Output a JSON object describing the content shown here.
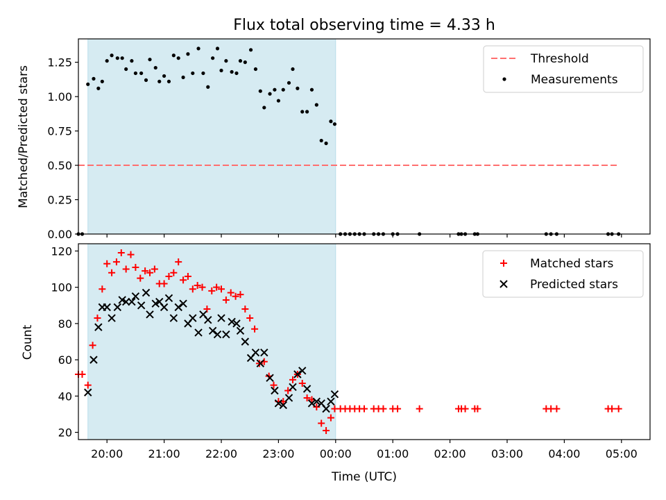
{
  "figure": {
    "title": "Flux total observing time = 4.33 h"
  },
  "chart_data": [
    {
      "type": "scatter",
      "panel": "top",
      "xlabel": "",
      "ylabel": "Matched/Predicted stars",
      "xlim": [
        "19:30",
        "05:30"
      ],
      "ylim": [
        0,
        1.42
      ],
      "yticks": [
        "0.00",
        "0.25",
        "0.50",
        "0.75",
        "1.00",
        "1.25"
      ],
      "highlight_span": {
        "from": "19:40",
        "to": "00:00",
        "color": "#add8e6"
      },
      "legend": {
        "position": "top-right",
        "entries": [
          "Threshold",
          "Measurements"
        ]
      },
      "threshold": {
        "name": "Threshold",
        "value": 0.5,
        "x_from": "19:30",
        "x_to": "04:57",
        "color": "#ff6f6f"
      },
      "series": [
        {
          "name": "Measurements",
          "color": "#000000",
          "points": [
            [
              "19:30",
              0.0
            ],
            [
              "19:34",
              0.0
            ],
            [
              "19:40",
              1.09
            ],
            [
              "19:46",
              1.13
            ],
            [
              "19:51",
              1.06
            ],
            [
              "19:55",
              1.11
            ],
            [
              "20:00",
              1.26
            ],
            [
              "20:05",
              1.3
            ],
            [
              "20:11",
              1.28
            ],
            [
              "20:16",
              1.28
            ],
            [
              "20:20",
              1.2
            ],
            [
              "20:26",
              1.26
            ],
            [
              "20:30",
              1.17
            ],
            [
              "20:36",
              1.17
            ],
            [
              "20:41",
              1.12
            ],
            [
              "20:45",
              1.27
            ],
            [
              "20:51",
              1.21
            ],
            [
              "20:55",
              1.11
            ],
            [
              "21:00",
              1.15
            ],
            [
              "21:05",
              1.11
            ],
            [
              "21:10",
              1.3
            ],
            [
              "21:15",
              1.28
            ],
            [
              "21:20",
              1.14
            ],
            [
              "21:25",
              1.31
            ],
            [
              "21:30",
              1.17
            ],
            [
              "21:36",
              1.35
            ],
            [
              "21:41",
              1.17
            ],
            [
              "21:46",
              1.07
            ],
            [
              "21:51",
              1.28
            ],
            [
              "21:56",
              1.35
            ],
            [
              "22:00",
              1.19
            ],
            [
              "22:05",
              1.26
            ],
            [
              "22:11",
              1.18
            ],
            [
              "22:16",
              1.17
            ],
            [
              "22:20",
              1.26
            ],
            [
              "22:25",
              1.25
            ],
            [
              "22:31",
              1.34
            ],
            [
              "22:36",
              1.2
            ],
            [
              "22:41",
              1.04
            ],
            [
              "22:45",
              0.92
            ],
            [
              "22:51",
              1.02
            ],
            [
              "22:56",
              1.05
            ],
            [
              "23:00",
              0.97
            ],
            [
              "23:05",
              1.05
            ],
            [
              "23:11",
              1.1
            ],
            [
              "23:15",
              1.2
            ],
            [
              "23:20",
              1.06
            ],
            [
              "23:25",
              0.89
            ],
            [
              "23:30",
              0.89
            ],
            [
              "23:35",
              1.05
            ],
            [
              "23:40",
              0.94
            ],
            [
              "23:45",
              0.68
            ],
            [
              "23:50",
              0.66
            ],
            [
              "23:55",
              0.82
            ],
            [
              "23:59",
              0.8
            ],
            [
              "00:05",
              0.0
            ],
            [
              "00:10",
              0.0
            ],
            [
              "00:15",
              0.0
            ],
            [
              "00:20",
              0.0
            ],
            [
              "00:25",
              0.0
            ],
            [
              "00:30",
              0.0
            ],
            [
              "00:40",
              0.0
            ],
            [
              "00:45",
              0.0
            ],
            [
              "00:50",
              0.0
            ],
            [
              "01:00",
              0.0
            ],
            [
              "01:05",
              0.0
            ],
            [
              "01:28",
              0.0
            ],
            [
              "02:09",
              0.0
            ],
            [
              "02:12",
              0.0
            ],
            [
              "02:16",
              0.0
            ],
            [
              "02:26",
              0.0
            ],
            [
              "02:29",
              0.0
            ],
            [
              "03:41",
              0.0
            ],
            [
              "03:46",
              0.0
            ],
            [
              "03:52",
              0.0
            ],
            [
              "04:46",
              0.0
            ],
            [
              "04:50",
              0.0
            ],
            [
              "04:57",
              0.0
            ]
          ]
        }
      ]
    },
    {
      "type": "scatter",
      "panel": "bottom",
      "xlabel": "Time (UTC)",
      "ylabel": "Count",
      "xlim": [
        "19:30",
        "05:30"
      ],
      "ylim": [
        16,
        124
      ],
      "yticks": [
        "20",
        "40",
        "60",
        "80",
        "100",
        "120"
      ],
      "xticks": [
        "20:00",
        "21:00",
        "22:00",
        "23:00",
        "00:00",
        "01:00",
        "02:00",
        "03:00",
        "04:00",
        "05:00"
      ],
      "highlight_span": {
        "from": "19:40",
        "to": "00:00",
        "color": "#add8e6"
      },
      "legend": {
        "position": "top-right",
        "entries": [
          "Matched stars",
          "Predicted stars"
        ]
      },
      "series": [
        {
          "name": "Matched stars",
          "marker": "+",
          "color": "#ff0000",
          "points": [
            [
              "19:30",
              52
            ],
            [
              "19:34",
              52
            ],
            [
              "19:40",
              46
            ],
            [
              "19:45",
              68
            ],
            [
              "19:50",
              83
            ],
            [
              "19:55",
              99
            ],
            [
              "20:00",
              113
            ],
            [
              "20:05",
              108
            ],
            [
              "20:10",
              114
            ],
            [
              "20:15",
              119
            ],
            [
              "20:20",
              110
            ],
            [
              "20:25",
              118
            ],
            [
              "20:30",
              111
            ],
            [
              "20:35",
              105
            ],
            [
              "20:40",
              109
            ],
            [
              "20:45",
              108
            ],
            [
              "20:50",
              110
            ],
            [
              "20:55",
              102
            ],
            [
              "21:00",
              102
            ],
            [
              "21:05",
              106
            ],
            [
              "21:10",
              108
            ],
            [
              "21:15",
              114
            ],
            [
              "21:20",
              104
            ],
            [
              "21:25",
              106
            ],
            [
              "21:30",
              99
            ],
            [
              "21:35",
              101
            ],
            [
              "21:40",
              100
            ],
            [
              "21:45",
              88
            ],
            [
              "21:50",
              98
            ],
            [
              "21:55",
              100
            ],
            [
              "22:00",
              99
            ],
            [
              "22:05",
              93
            ],
            [
              "22:10",
              97
            ],
            [
              "22:15",
              95
            ],
            [
              "22:20",
              96
            ],
            [
              "22:25",
              88
            ],
            [
              "22:30",
              83
            ],
            [
              "22:35",
              77
            ],
            [
              "22:40",
              58
            ],
            [
              "22:45",
              59
            ],
            [
              "22:50",
              51
            ],
            [
              "22:55",
              46
            ],
            [
              "23:00",
              37
            ],
            [
              "23:05",
              37
            ],
            [
              "23:10",
              43
            ],
            [
              "23:15",
              49
            ],
            [
              "23:20",
              52
            ],
            [
              "23:25",
              47
            ],
            [
              "23:30",
              39
            ],
            [
              "23:35",
              38
            ],
            [
              "23:40",
              34
            ],
            [
              "23:45",
              25
            ],
            [
              "23:50",
              21
            ],
            [
              "23:55",
              28
            ],
            [
              "23:59",
              33
            ],
            [
              "00:05",
              33
            ],
            [
              "00:10",
              33
            ],
            [
              "00:15",
              33
            ],
            [
              "00:20",
              33
            ],
            [
              "00:25",
              33
            ],
            [
              "00:30",
              33
            ],
            [
              "00:40",
              33
            ],
            [
              "00:45",
              33
            ],
            [
              "00:50",
              33
            ],
            [
              "01:00",
              33
            ],
            [
              "01:05",
              33
            ],
            [
              "01:28",
              33
            ],
            [
              "02:09",
              33
            ],
            [
              "02:12",
              33
            ],
            [
              "02:16",
              33
            ],
            [
              "02:26",
              33
            ],
            [
              "02:29",
              33
            ],
            [
              "03:41",
              33
            ],
            [
              "03:46",
              33
            ],
            [
              "03:52",
              33
            ],
            [
              "04:46",
              33
            ],
            [
              "04:50",
              33
            ],
            [
              "04:57",
              33
            ]
          ]
        },
        {
          "name": "Predicted stars",
          "marker": "x",
          "color": "#000000",
          "points": [
            [
              "19:40",
              42
            ],
            [
              "19:46",
              60
            ],
            [
              "19:51",
              78
            ],
            [
              "19:55",
              89
            ],
            [
              "20:00",
              89
            ],
            [
              "20:05",
              83
            ],
            [
              "20:11",
              89
            ],
            [
              "20:16",
              93
            ],
            [
              "20:20",
              92
            ],
            [
              "20:26",
              92
            ],
            [
              "20:30",
              95
            ],
            [
              "20:36",
              90
            ],
            [
              "20:41",
              97
            ],
            [
              "20:45",
              85
            ],
            [
              "20:51",
              91
            ],
            [
              "20:55",
              92
            ],
            [
              "21:00",
              89
            ],
            [
              "21:05",
              94
            ],
            [
              "21:10",
              83
            ],
            [
              "21:15",
              89
            ],
            [
              "21:20",
              91
            ],
            [
              "21:25",
              80
            ],
            [
              "21:30",
              83
            ],
            [
              "21:36",
              75
            ],
            [
              "21:41",
              85
            ],
            [
              "21:46",
              82
            ],
            [
              "21:51",
              76
            ],
            [
              "21:56",
              74
            ],
            [
              "22:00",
              83
            ],
            [
              "22:05",
              74
            ],
            [
              "22:11",
              81
            ],
            [
              "22:16",
              80
            ],
            [
              "22:20",
              76
            ],
            [
              "22:25",
              70
            ],
            [
              "22:31",
              61
            ],
            [
              "22:36",
              64
            ],
            [
              "22:41",
              58
            ],
            [
              "22:45",
              64
            ],
            [
              "22:51",
              50
            ],
            [
              "22:56",
              43
            ],
            [
              "23:00",
              36
            ],
            [
              "23:05",
              35
            ],
            [
              "23:11",
              39
            ],
            [
              "23:15",
              45
            ],
            [
              "23:20",
              52
            ],
            [
              "23:25",
              54
            ],
            [
              "23:30",
              44
            ],
            [
              "23:35",
              36
            ],
            [
              "23:40",
              37
            ],
            [
              "23:45",
              36
            ],
            [
              "23:50",
              33
            ],
            [
              "23:55",
              37
            ],
            [
              "23:59",
              41
            ]
          ]
        }
      ]
    }
  ]
}
